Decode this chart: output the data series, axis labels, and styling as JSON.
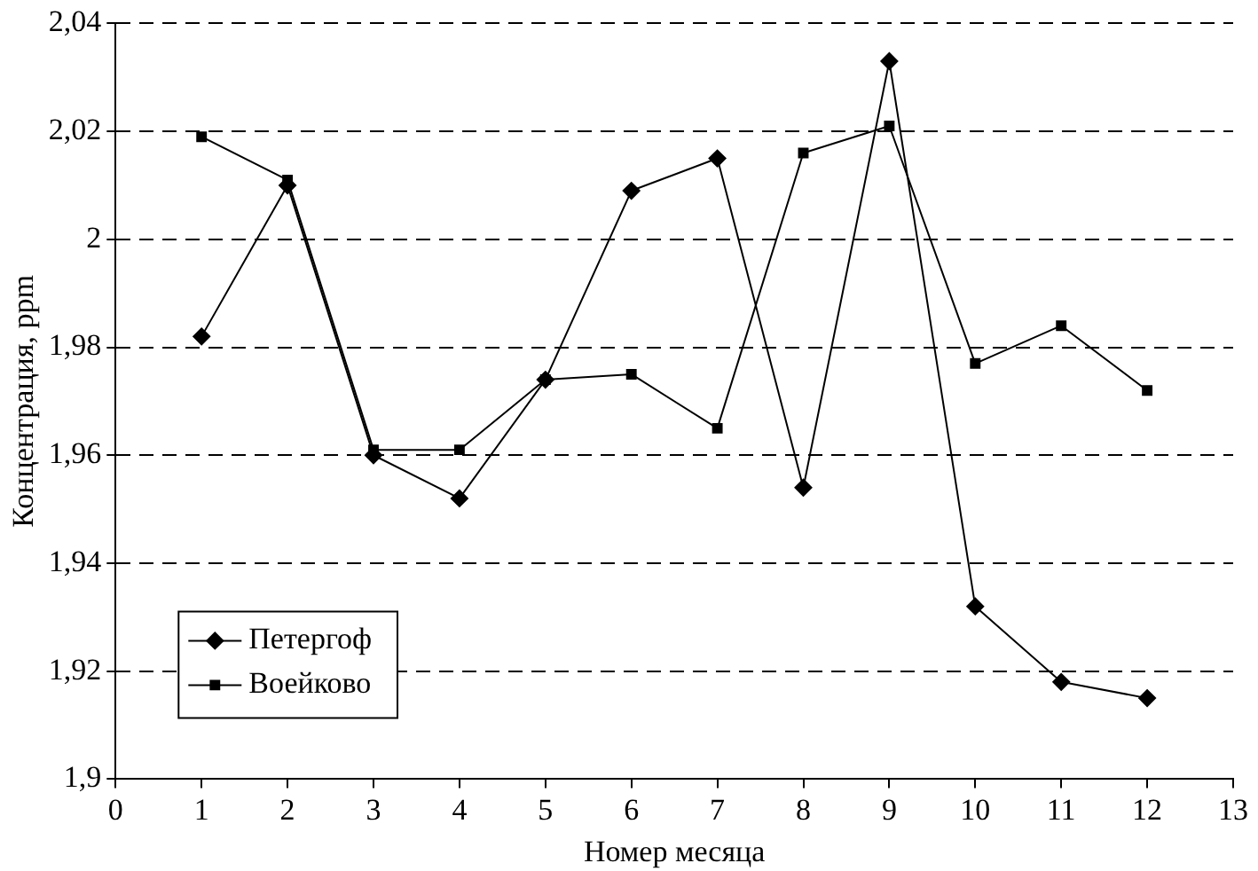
{
  "chart_data": {
    "type": "line",
    "xlabel": "Номер месяца",
    "ylabel": "Концентрация, ppm",
    "x": [
      1,
      2,
      3,
      4,
      5,
      6,
      7,
      8,
      9,
      10,
      11,
      12
    ],
    "series": [
      {
        "name": "Петергоф",
        "color": "#000000",
        "marker": "diamond",
        "values": [
          1.982,
          2.01,
          1.96,
          1.952,
          1.974,
          2.009,
          2.015,
          1.954,
          2.033,
          1.932,
          1.918,
          1.915
        ]
      },
      {
        "name": "Воейково",
        "color": "#000000",
        "marker": "square",
        "values": [
          2.019,
          2.011,
          1.961,
          1.961,
          1.974,
          1.975,
          1.965,
          2.016,
          2.021,
          1.977,
          1.984,
          1.972
        ]
      }
    ],
    "xlim": [
      0,
      13
    ],
    "xticks": [
      0,
      1,
      2,
      3,
      4,
      5,
      6,
      7,
      8,
      9,
      10,
      11,
      12,
      13
    ],
    "ylim": [
      1.9,
      2.04
    ],
    "yticks": [
      {
        "value": 1.9,
        "label": "1,9"
      },
      {
        "value": 1.92,
        "label": "1,92"
      },
      {
        "value": 1.94,
        "label": "1,94"
      },
      {
        "value": 1.96,
        "label": "1,96"
      },
      {
        "value": 1.98,
        "label": "1,98"
      },
      2,
      {
        "value": 2.02,
        "label": "2,02"
      },
      {
        "value": 2.04,
        "label": "2,04"
      }
    ],
    "grid": "y",
    "legend": "bottom left",
    "line_style": "solid"
  }
}
